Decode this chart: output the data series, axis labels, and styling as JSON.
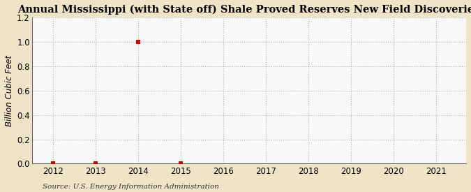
{
  "title": "Annual Mississippi (with State off) Shale Proved Reserves New Field Discoveries",
  "ylabel": "Billion Cubic Feet",
  "source": "Source: U.S. Energy Information Administration",
  "xlim": [
    2011.5,
    2021.7
  ],
  "ylim": [
    0.0,
    1.2
  ],
  "yticks": [
    0.0,
    0.2,
    0.4,
    0.6,
    0.8,
    1.0,
    1.2
  ],
  "xticks": [
    2012,
    2013,
    2014,
    2015,
    2016,
    2017,
    2018,
    2019,
    2020,
    2021
  ],
  "data_x": [
    2012,
    2013,
    2014,
    2015
  ],
  "data_y": [
    0.0,
    0.0,
    1.0,
    0.0
  ],
  "marker_color": "#cc0000",
  "marker_size": 4,
  "background_color": "#f0e4c8",
  "plot_bg_color": "#f0f4f8",
  "grid_color": "#aaaaaa",
  "title_fontsize": 10.5,
  "label_fontsize": 8.5,
  "tick_fontsize": 8.5,
  "source_fontsize": 7.5
}
